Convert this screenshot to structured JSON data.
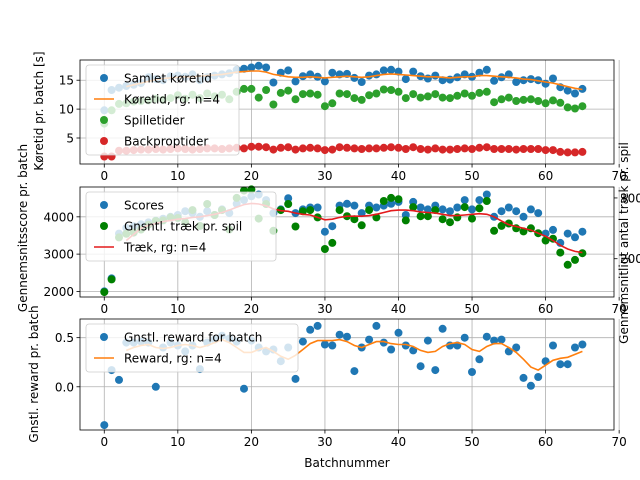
{
  "colors": {
    "blue": "#1f77b4",
    "orange": "#ff7f0e",
    "green": "#2ca02c",
    "red": "#d62728",
    "dark_green": "#008000",
    "pure_red": "#e41a1c"
  },
  "chart_data": [
    {
      "type": "scatter",
      "title": "",
      "xlabel": "",
      "ylabel": "Køretid pr. batch [s]",
      "xlim": [
        -3.3,
        69.3
      ],
      "ylim": [
        0.5,
        18.5
      ],
      "xticks": [
        "0",
        "10",
        "20",
        "30",
        "40",
        "50",
        "60",
        "70"
      ],
      "yticks": [
        "5",
        "10",
        "15"
      ],
      "grid": true,
      "legend_position": "top-left",
      "legend": [
        "Samlet køretid",
        "Køretid, rg: n=4",
        "Spilletider",
        "Backproptider"
      ],
      "series": [
        {
          "name": "Samlet køretid",
          "kind": "scatter",
          "color": "blue",
          "values": [
            9.8,
            13.3,
            13.7,
            14.0,
            14.2,
            14.5,
            15.5,
            15.2,
            15.0,
            15.7,
            15.8,
            15.6,
            16.0,
            15.0,
            15.5,
            15.8,
            16.0,
            16.2,
            16.8,
            17.0,
            17.2,
            17.5,
            17.2,
            14.6,
            16.3,
            16.7,
            14.8,
            15.7,
            16.0,
            15.6,
            14.8,
            16.3,
            16.0,
            16.1,
            15.4,
            14.7,
            15.8,
            16.0,
            16.7,
            16.8,
            16.5,
            15.2,
            16.5,
            15.7,
            15.3,
            15.8,
            15.0,
            15.1,
            15.5,
            16.0,
            15.6,
            16.3,
            16.8,
            14.9,
            15.5,
            16.0,
            14.7,
            15.0,
            15.2,
            15.0,
            14.4,
            15.3,
            13.8,
            13.2,
            12.7,
            13.5
          ]
        },
        {
          "name": "Køretid, rg: n=4",
          "kind": "line",
          "color": "orange",
          "values": [
            null,
            null,
            null,
            13.9,
            14.2,
            14.5,
            14.8,
            15.1,
            15.3,
            15.4,
            15.5,
            15.6,
            15.6,
            15.7,
            15.8,
            15.9,
            16.0,
            16.2,
            16.4,
            16.5,
            16.6,
            16.6,
            16.4,
            16.0,
            15.8,
            15.6,
            15.5,
            15.5,
            15.6,
            15.5,
            15.4,
            15.5,
            15.6,
            15.7,
            15.6,
            15.5,
            15.6,
            15.8,
            16.0,
            16.1,
            16.0,
            15.9,
            15.8,
            15.7,
            15.6,
            15.6,
            15.5,
            15.4,
            15.5,
            15.6,
            15.6,
            15.8,
            15.8,
            15.7,
            15.6,
            15.5,
            15.4,
            15.2,
            15.1,
            14.9,
            14.7,
            14.5,
            14.2,
            13.9,
            13.6,
            13.4
          ]
        },
        {
          "name": "Spilletider",
          "kind": "scatter",
          "color": "green",
          "values": [
            7.5,
            9.8,
            10.9,
            11.0,
            11.3,
            11.4,
            11.5,
            11.8,
            11.6,
            11.9,
            12.4,
            11.8,
            12.5,
            11.9,
            12.7,
            12.2,
            12.5,
            11.7,
            13.0,
            13.5,
            13.5,
            12.0,
            13.3,
            10.8,
            12.8,
            13.2,
            11.7,
            12.6,
            12.7,
            12.5,
            10.5,
            11.0,
            12.7,
            12.6,
            11.9,
            11.6,
            12.4,
            12.7,
            13.4,
            13.3,
            13.0,
            11.9,
            12.6,
            12.0,
            12.2,
            12.6,
            12.0,
            11.9,
            12.3,
            12.7,
            12.3,
            12.8,
            13.0,
            11.2,
            11.7,
            12.0,
            11.4,
            11.6,
            11.7,
            11.4,
            11.0,
            11.5,
            11.1,
            10.3,
            10.1,
            10.5
          ]
        },
        {
          "name": "Backproptider",
          "kind": "scatter",
          "color": "red",
          "values": [
            1.8,
            1.8,
            2.8,
            2.8,
            2.9,
            3.0,
            3.0,
            3.1,
            3.0,
            3.1,
            3.2,
            3.1,
            3.0,
            3.1,
            3.2,
            3.2,
            3.1,
            3.2,
            3.3,
            3.2,
            3.5,
            3.5,
            3.4,
            3.0,
            3.3,
            3.4,
            3.0,
            3.2,
            3.3,
            3.2,
            2.9,
            3.0,
            3.4,
            3.3,
            3.2,
            3.1,
            3.2,
            3.2,
            3.3,
            3.4,
            3.3,
            3.1,
            3.4,
            3.1,
            3.0,
            3.2,
            3.0,
            3.0,
            3.1,
            3.2,
            3.1,
            3.3,
            3.4,
            3.1,
            3.1,
            3.1,
            3.0,
            3.1,
            3.1,
            3.1,
            2.9,
            2.9,
            2.6,
            2.5,
            2.5,
            2.6
          ]
        }
      ]
    },
    {
      "type": "scatter",
      "title": "",
      "xlabel": "",
      "ylabel": "Gennemsnitsscore pr. batch",
      "ylabel_right": "Gennemsnitligt antal træk pr. spil",
      "xlim": [
        -3.3,
        69.3
      ],
      "ylim": [
        1850,
        4800
      ],
      "ylim_right": [
        137,
        318
      ],
      "xticks": [
        "0",
        "10",
        "20",
        "30",
        "40",
        "50",
        "60",
        "70"
      ],
      "yticks": [
        "2000",
        "3000",
        "4000"
      ],
      "yticks_right": [
        "200",
        "300"
      ],
      "grid": true,
      "legend_position": "top-left",
      "legend": [
        "Scores",
        "Gnsntl. træk pr. spil",
        "Træk, rg: n=4"
      ],
      "series": [
        {
          "name": "Scores",
          "kind": "scatter",
          "color": "blue",
          "axis": "left",
          "values": [
            2000,
            2350,
            3550,
            3700,
            3750,
            3800,
            3850,
            3900,
            3950,
            4000,
            4050,
            4150,
            4100,
            4000,
            4150,
            4050,
            4200,
            4100,
            4350,
            4450,
            4550,
            4600,
            4450,
            4100,
            4200,
            4500,
            4100,
            4200,
            4250,
            4250,
            3600,
            3750,
            4300,
            4350,
            4300,
            4100,
            4300,
            4250,
            4300,
            4350,
            4400,
            4050,
            4400,
            4250,
            4200,
            4300,
            4200,
            4150,
            4250,
            4450,
            4200,
            4450,
            4600,
            4000,
            4150,
            4250,
            4150,
            4000,
            4200,
            4100,
            3550,
            3650,
            3300,
            3550,
            3450,
            3600
          ]
        },
        {
          "name": "Gnsntl. træk pr. spil",
          "kind": "scatter",
          "color": "dark_green",
          "axis": "right",
          "values": [
            145,
            166,
            235,
            241,
            243,
            248,
            256,
            262,
            263,
            268,
            267,
            260,
            280,
            254,
            290,
            272,
            280,
            248,
            300,
            312,
            314,
            266,
            290,
            246,
            280,
            290,
            253,
            278,
            280,
            268,
            216,
            226,
            280,
            270,
            265,
            255,
            280,
            268,
            295,
            300,
            298,
            263,
            285,
            270,
            270,
            280,
            265,
            260,
            268,
            285,
            266,
            283,
            295,
            246,
            254,
            258,
            250,
            245,
            250,
            242,
            230,
            233,
            210,
            190,
            198,
            209
          ]
        },
        {
          "name": "Træk, rg: n=4",
          "kind": "line",
          "color": "pure_red",
          "axis": "right",
          "values": [
            null,
            null,
            null,
            230,
            240,
            250,
            255,
            258,
            261,
            263,
            265,
            266,
            268,
            269,
            271,
            273,
            276,
            280,
            285,
            289,
            291,
            290,
            287,
            282,
            279,
            278,
            275,
            273,
            272,
            268,
            264,
            265,
            268,
            270,
            270,
            270,
            271,
            273,
            276,
            279,
            280,
            280,
            279,
            277,
            276,
            275,
            273,
            271,
            271,
            272,
            273,
            274,
            273,
            269,
            262,
            256,
            253,
            250,
            247,
            242,
            237,
            230,
            222,
            216,
            212,
            210
          ]
        }
      ]
    },
    {
      "type": "scatter",
      "title": "",
      "xlabel": "Batchnummer",
      "ylabel": "Gnstl. reward pr. batch",
      "xlim": [
        -3.3,
        69.3
      ],
      "ylim": [
        -0.44,
        0.69
      ],
      "xticks": [
        "0",
        "10",
        "20",
        "30",
        "40",
        "50",
        "60",
        "70"
      ],
      "yticks": [
        "0.0",
        "0.5"
      ],
      "grid": true,
      "legend_position": "top-left",
      "legend": [
        "Gnstl. reward for batch",
        "Reward, rg: n=4"
      ],
      "series": [
        {
          "name": "Gnstl. reward for batch",
          "kind": "scatter",
          "color": "blue",
          "values": [
            -0.39,
            0.17,
            0.07,
            0.45,
            0.45,
            0.46,
            0.45,
            0.0,
            0.4,
            0.45,
            0.42,
            0.36,
            0.42,
            0.18,
            0.45,
            0.48,
            0.52,
            0.49,
            0.46,
            -0.02,
            0.47,
            0.4,
            0.36,
            0.38,
            0.26,
            0.4,
            0.08,
            0.46,
            0.58,
            0.62,
            0.43,
            0.42,
            0.53,
            0.51,
            0.16,
            0.4,
            0.48,
            0.62,
            0.45,
            0.38,
            0.55,
            0.42,
            0.37,
            0.21,
            0.47,
            0.17,
            0.59,
            0.42,
            0.42,
            0.5,
            0.15,
            0.28,
            0.51,
            0.47,
            0.48,
            0.36,
            0.4,
            0.09,
            0.01,
            0.1,
            0.26,
            0.42,
            0.23,
            0.23,
            0.4,
            0.43
          ]
        },
        {
          "name": "Reward, rg: n=4",
          "kind": "line",
          "color": "orange",
          "values": [
            null,
            null,
            null,
            0.37,
            0.4,
            0.42,
            0.43,
            0.4,
            0.39,
            0.4,
            0.42,
            0.43,
            0.42,
            0.4,
            0.42,
            0.45,
            0.48,
            0.45,
            0.4,
            0.35,
            0.35,
            0.38,
            0.4,
            0.36,
            0.31,
            0.28,
            0.32,
            0.38,
            0.44,
            0.47,
            0.47,
            0.47,
            0.48,
            0.46,
            0.42,
            0.4,
            0.43,
            0.46,
            0.46,
            0.44,
            0.43,
            0.43,
            0.41,
            0.37,
            0.35,
            0.36,
            0.41,
            0.44,
            0.45,
            0.43,
            0.38,
            0.36,
            0.41,
            0.44,
            0.44,
            0.4,
            0.35,
            0.28,
            0.2,
            0.17,
            0.22,
            0.27,
            0.29,
            0.3,
            0.33,
            0.36
          ]
        }
      ]
    }
  ]
}
